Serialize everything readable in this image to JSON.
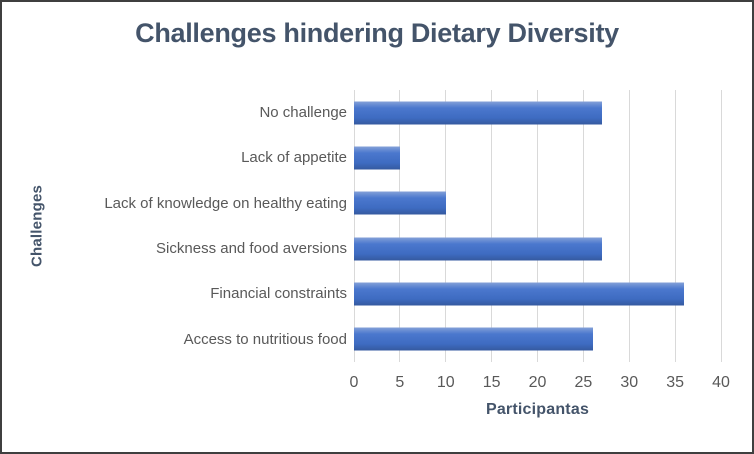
{
  "chart_data": {
    "type": "bar",
    "orientation": "horizontal",
    "title": "Challenges hindering Dietary Diversity",
    "xlabel": "Participantas",
    "ylabel": "Challenges",
    "categories": [
      "No challenge",
      "Lack of appetite",
      "Lack of knowledge on healthy eating",
      "Sickness and food aversions",
      "Financial constraints",
      "Access to nutritious food"
    ],
    "values": [
      27,
      5,
      10,
      27,
      36,
      26
    ],
    "xlim": [
      0,
      40
    ],
    "xticks": [
      0,
      5,
      10,
      15,
      20,
      25,
      30,
      35,
      40
    ],
    "grid": true,
    "legend": false
  },
  "colors": {
    "bar_fill": "#4472C4",
    "bar_gradient": [
      "#84a0d8",
      "#4b78ce",
      "#3e6bc1",
      "#35599f"
    ],
    "title_text": "#44546A",
    "axis_title_text": "#44546A",
    "tick_text": "#595959",
    "gridline": "#D9D9D9",
    "frame_border": "#3F3F3F",
    "background": "#FFFFFF"
  }
}
